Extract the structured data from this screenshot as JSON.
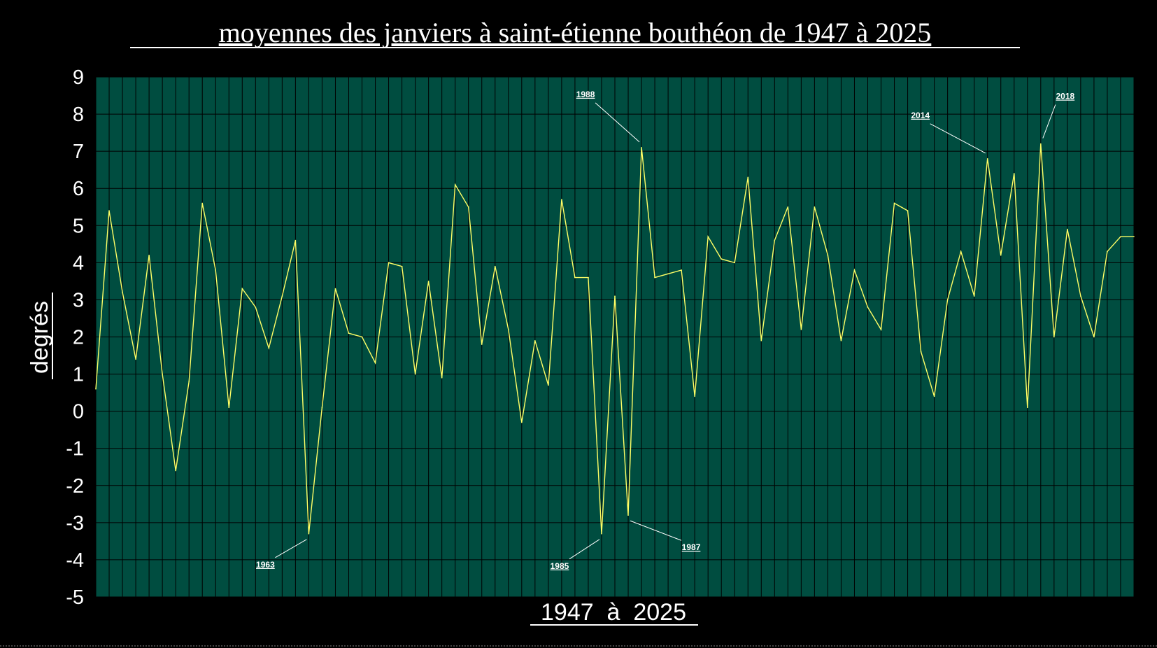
{
  "chart_data": {
    "type": "line",
    "title": "moyennes des janviers à saint-étienne bouthéon de 1947 à 2025",
    "xlabel": "1947  à  2025",
    "ylabel": "degrés",
    "ylim": [
      -5,
      9
    ],
    "yticks": [
      "9",
      "8",
      "7",
      "6",
      "5",
      "4",
      "3",
      "2",
      "1",
      "0",
      "-1",
      "-2",
      "-3",
      "-4",
      "-5"
    ],
    "grid": true,
    "legend": "none",
    "colors": {
      "background": "#000000",
      "plot_area": "#004d40",
      "grid": "#000000",
      "line": "#ffff66",
      "text": "#ffffff"
    },
    "series": [
      {
        "x": [
          1947,
          1948,
          1949,
          1950,
          1951,
          1952,
          1953,
          1954,
          1955,
          1956,
          1957,
          1958,
          1959,
          1960,
          1961,
          1962,
          1963,
          1964,
          1965,
          1966,
          1967,
          1968,
          1969,
          1970,
          1971,
          1972,
          1973,
          1974,
          1975,
          1976,
          1977,
          1978,
          1979,
          1980,
          1981,
          1982,
          1983,
          1984,
          1985,
          1986,
          1987,
          1988,
          1989,
          1990,
          1991,
          1992,
          1993,
          1994,
          1995,
          1996,
          1997,
          1998,
          1999,
          2000,
          2001,
          2002,
          2003,
          2004,
          2005,
          2006,
          2007,
          2008,
          2009,
          2010,
          2011,
          2012,
          2013,
          2014,
          2015,
          2016,
          2017,
          2018,
          2019,
          2020,
          2021,
          2022,
          2023,
          2024,
          2025
        ],
        "values": [
          0.6,
          5.4,
          3.2,
          1.4,
          4.2,
          1.0,
          -1.6,
          0.8,
          5.6,
          3.8,
          0.1,
          3.3,
          2.8,
          1.7,
          3.1,
          4.6,
          -3.3,
          0.1,
          3.3,
          2.1,
          2.0,
          1.3,
          4.0,
          3.9,
          1.0,
          3.5,
          0.9,
          6.1,
          5.5,
          1.8,
          3.9,
          2.2,
          -0.3,
          1.9,
          0.7,
          5.7,
          3.6,
          3.6,
          -3.3,
          3.1,
          -2.8,
          7.1,
          3.6,
          3.7,
          3.8,
          0.4,
          4.7,
          4.1,
          4.0,
          6.3,
          1.9,
          4.6,
          5.5,
          2.2,
          5.5,
          4.2,
          1.9,
          3.8,
          2.8,
          2.2,
          5.6,
          5.4,
          1.6,
          0.4,
          3.0,
          4.3,
          3.1,
          6.8,
          4.2,
          6.4,
          0.1,
          7.2,
          2.0,
          4.9,
          3.1,
          2.0,
          4.3,
          4.7,
          4.7
        ]
      }
    ],
    "annotations": [
      {
        "label": "1963",
        "year": 1963
      },
      {
        "label": "1985",
        "year": 1985
      },
      {
        "label": "1987",
        "year": 1987
      },
      {
        "label": "1988",
        "year": 1988
      },
      {
        "label": "2014",
        "year": 2014
      },
      {
        "label": "2018",
        "year": 2018
      }
    ]
  }
}
